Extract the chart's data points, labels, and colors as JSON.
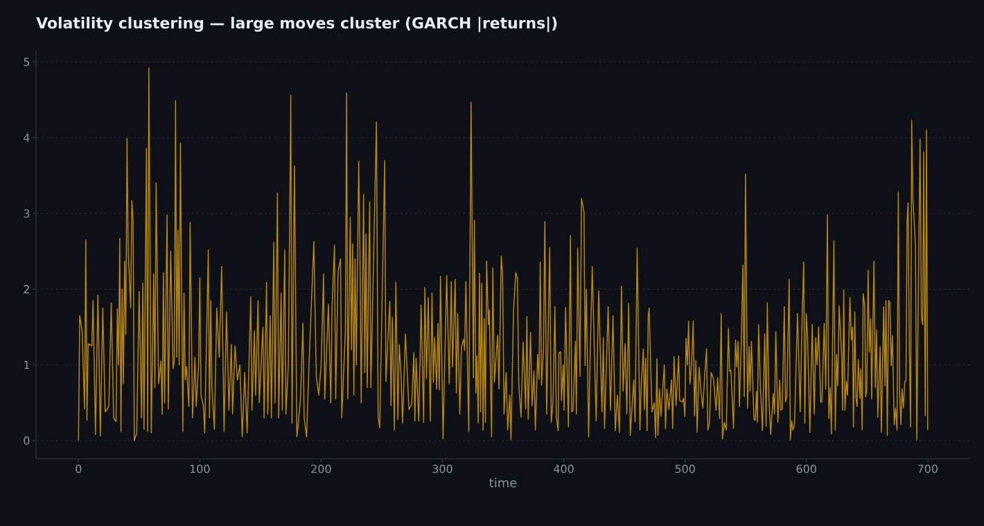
{
  "chart_data": {
    "type": "line",
    "title": "Volatility clustering — large moves cluster (GARCH |returns|)",
    "xlabel": "time",
    "color": "#b8860b",
    "grid": "y",
    "xlim": [
      -35,
      735
    ],
    "ylim": [
      -0.24,
      5.16
    ],
    "xticks": [
      0,
      100,
      200,
      300,
      400,
      500,
      600,
      700
    ],
    "yticks": [
      0,
      1,
      2,
      3,
      4,
      5
    ],
    "x": [
      0,
      1,
      3,
      5,
      6,
      7,
      8,
      11,
      12,
      14,
      16,
      18,
      20,
      22,
      25,
      27,
      29,
      31,
      32,
      33,
      34,
      35,
      36,
      37,
      38,
      39,
      40,
      41,
      43,
      44,
      45,
      46,
      48,
      50,
      52,
      53,
      54,
      56,
      57,
      58,
      60,
      62,
      63,
      64,
      66,
      68,
      69,
      70,
      71,
      73,
      74,
      76,
      78,
      79,
      80,
      81,
      82,
      83,
      84,
      86,
      87,
      88,
      89,
      91,
      92,
      94,
      96,
      97,
      99,
      100,
      101,
      103,
      104,
      107,
      108,
      109,
      110,
      112,
      114,
      116,
      118,
      120,
      122,
      124,
      126,
      127,
      129,
      131,
      133,
      135,
      137,
      139,
      142,
      143,
      145,
      146,
      148,
      149,
      152,
      153,
      155,
      156,
      158,
      159,
      161,
      162,
      164,
      165,
      167,
      168,
      170,
      171,
      173,
      175,
      176,
      178,
      180,
      181,
      183,
      185,
      186,
      188,
      190,
      194,
      196,
      198,
      200,
      202,
      203,
      206,
      208,
      209,
      211,
      212,
      214,
      216,
      217,
      220,
      221,
      222,
      224,
      225,
      226,
      227,
      228,
      229,
      231,
      232,
      233,
      235,
      236,
      237,
      238,
      240,
      241,
      245.6,
      247,
      248.3,
      252.4,
      253.4,
      256.6,
      257.6,
      258.7,
      260.4,
      261.6,
      263.3,
      264.4,
      265.9,
      267.1,
      269.5,
      272.4,
      274.7,
      276.4,
      277.3,
      278.3,
      280.5,
      282.4,
      284.5,
      285.5,
      286.8,
      288.3,
      290.0,
      291.4,
      292.5,
      293.6,
      295.2,
      296.3,
      297.4,
      298.4,
      300.5,
      303.5,
      305.6,
      307.3,
      308.3,
      310.5,
      311.5,
      312.6,
      314.3,
      315.7,
      317.4,
      318.3,
      319.3,
      321.7,
      323.6,
      325.5,
      326.3,
      327.6,
      328.4,
      329.5,
      330.5,
      331.4,
      332.4,
      333.5,
      334.5,
      335.4,
      336.4,
      337.9,
      338.6,
      340.5,
      341.5,
      342.8,
      345.5,
      346.6,
      348.5,
      349.6,
      350.8,
      352.5,
      353.8,
      355.5,
      356.5,
      358.6,
      360.5,
      361.8,
      362.9,
      364.8,
      366.5,
      368.6,
      369.6,
      370.7,
      372.6,
      373.9,
      375.5,
      376.6,
      378.5,
      379.6,
      380.6,
      381.7,
      383.3,
      384.4,
      385.9,
      388.4,
      389.7,
      391.2,
      392.7,
      393.9,
      395.4,
      396.0,
      397.5,
      398.1,
      399.6,
      400.3,
      401.5,
      403.9,
      405.5,
      406.6,
      407.7,
      409.6,
      410.4,
      411.5,
      413.4,
      414.6,
      416.7,
      417.6,
      418.6,
      420.5,
      421.8,
      423.5,
      426.7,
      428.8,
      431.5,
      432.6,
      433.6,
      436.6,
      438.5,
      440.6,
      442.5,
      444.2,
      445.9,
      447.6,
      448.9,
      450.6,
      452.0,
      453.5,
      454.8,
      457.7,
      458.8,
      460.5,
      462.8,
      463.9,
      465.6,
      466.4,
      467.5,
      468.7,
      469.6,
      470.4,
      472.7,
      474.6,
      475.7,
      476.8,
      477.6,
      478.9,
      480.1,
      482.9,
      483.9,
      485.0,
      486.7,
      488.8,
      489.8,
      490.9,
      492.6,
      494.7,
      495.5,
      497.7,
      498.7,
      499.8,
      500.8,
      501.9,
      502.9,
      504.0,
      505.3,
      506.7,
      507.8,
      508.9,
      509.9,
      511.6,
      513.1,
      514.6,
      516.3,
      517.7,
      518.8,
      520.1,
      521.5,
      523.4,
      525.6,
      526.8,
      528.5,
      529.8,
      530.8,
      532.3,
      534.0,
      535.7,
      536.7,
      537.8,
      539.9,
      541.6,
      542.7,
      543.7,
      544.8,
      546.3,
      547.7,
      548.8,
      549.8,
      551.5,
      552.8,
      553.6,
      554.7,
      556.8,
      557.9,
      558.9,
      559.6,
      560.6,
      562.1,
      563.8,
      565.7,
      566.8,
      567.8,
      569.1,
      570.6,
      572.7,
      573.7,
      574.8,
      576.5,
      578.0,
      579.0,
      580.1,
      581.8,
      582.8,
      583.9,
      585.8,
      586.8,
      587.9,
      588.9,
      590.2,
      592.7,
      594.9,
      596.3,
      597.8,
      598.7,
      599.9,
      601.0,
      602.9,
      604.8,
      606.5,
      607.7,
      608.8,
      610.1,
      611.8,
      612.8,
      614.7,
      616.0,
      617.3,
      618.5,
      619.6,
      620.6,
      622.7,
      623.8,
      624.9,
      625.9,
      627.0,
      629.1,
      629.9,
      630.8,
      631.8,
      632.9,
      633.9,
      635.9,
      637.1,
      638.0,
      638.8,
      639.9,
      640.9,
      641.8,
      642.8,
      644.1,
      644.9,
      646.0,
      646.8,
      648.1,
      648.9,
      649.8,
      650.9,
      651.9,
      653.0,
      653.8,
      655.7,
      656.8,
      657.8,
      658.9,
      660.8,
      661.8,
      663.7,
      664.8,
      665.6,
      666.7,
      667.8,
      668.8,
      669.9,
      670.9,
      672.4,
      673.5,
      674.7,
      675.8,
      676.8,
      677.9,
      678.9,
      680.0,
      681.1,
      682.1,
      683.0,
      683.8,
      684.9,
      685.9,
      686.8,
      687.8,
      689.9,
      691.0,
      693.7,
      694.8,
      695.9,
      696.7,
      698.0,
      699.0,
      700.0
    ],
    "values": [
      0,
      1.65,
      1.45,
      0.42,
      2.65,
      0.27,
      1.28,
      1.25,
      1.85,
      0.08,
      1.92,
      0.06,
      1.75,
      0.38,
      0.45,
      1.82,
      0.3,
      0.25,
      1.74,
      1.0,
      2.67,
      0.12,
      2.0,
      0.75,
      2.37,
      1.4,
      3.99,
      2.5,
      1.75,
      3.17,
      2.9,
      0.0,
      0.1,
      1.97,
      0.3,
      2.08,
      0.15,
      3.86,
      0.12,
      4.92,
      0.1,
      2.2,
      0.7,
      3.4,
      0.75,
      1.05,
      0.35,
      2.22,
      0.5,
      2.98,
      0.42,
      2.5,
      0.95,
      1.05,
      4.49,
      1.1,
      2.78,
      1.0,
      3.93,
      0.12,
      1.95,
      0.8,
      0.98,
      0.45,
      2.88,
      0.3,
      1.1,
      0.45,
      1.0,
      2.15,
      0.6,
      0.45,
      0.1,
      2.52,
      0.3,
      1.85,
      0.7,
      0.15,
      1.75,
      1.1,
      2.3,
      0.12,
      1.7,
      0.4,
      1.27,
      0.35,
      1.25,
      0.8,
      1.0,
      0.05,
      0.9,
      0.1,
      1.9,
      0.4,
      1.45,
      0.6,
      1.85,
      0.5,
      1.5,
      0.3,
      2.09,
      0.35,
      1.65,
      0.3,
      2.62,
      0.5,
      3.27,
      0.3,
      1.95,
      0.4,
      2.52,
      0.35,
      1.0,
      4.56,
      0.23,
      3.63,
      0.05,
      0.2,
      0.55,
      1.55,
      0.3,
      0.05,
      1.0,
      2.63,
      0.85,
      0.6,
      1.0,
      2.2,
      0.55,
      1.8,
      0.5,
      1.75,
      2.58,
      0.55,
      2.24,
      2.4,
      0.3,
      1.45,
      4.59,
      0.55,
      2.95,
      1.2,
      2.6,
      0.6,
      2.4,
      1.0,
      3.69,
      2.5,
      0.5,
      3.25,
      0.9,
      2.73,
      0.7,
      3.15,
      0.7,
      4.21,
      0.3,
      0.17,
      3.7,
      0.78,
      1.84,
      0.46,
      1.63,
      0.14,
      2.09,
      0.28,
      1.27,
      0.85,
      0.23,
      1.41,
      0.41,
      0.48,
      1.16,
      0.26,
      1.09,
      0.26,
      1.79,
      0.24,
      2.02,
      0.82,
      1.89,
      0.26,
      1.95,
      0.77,
      1.36,
      0.68,
      1.55,
      0.67,
      2.17,
      0.02,
      2.18,
      0.75,
      2.1,
      0.97,
      2.13,
      0.63,
      1.68,
      0.35,
      1.24,
      1.34,
      1.19,
      2.1,
      0.12,
      4.47,
      0.83,
      2.91,
      0.63,
      1.12,
      0.23,
      2.21,
      0.38,
      2.08,
      0.14,
      1.61,
      0.24,
      2.37,
      1.53,
      1.73,
      0.05,
      2.28,
      0.77,
      1.39,
      0.68,
      2.44,
      2.17,
      0.35,
      0.9,
      0.14,
      0.6,
      0.01,
      1.72,
      2.22,
      2.14,
      0.75,
      0.31,
      1.3,
      0.42,
      1.64,
      0.28,
      1.43,
      0.46,
      0.92,
      0.14,
      1.14,
      0.81,
      2.36,
      0.73,
      1.21,
      2.89,
      0.35,
      2.55,
      0.24,
      0.53,
      1.77,
      0.31,
      0.13,
      1.16,
      1.17,
      0.53,
      1.0,
      0.4,
      1.76,
      0.18,
      2.71,
      0.38,
      0.4,
      1.31,
      0.35,
      2.54,
      0.85,
      3.2,
      3.02,
      0.99,
      2.0,
      0.05,
      1.16,
      2.3,
      0.26,
      1.98,
      0.38,
      1.36,
      0.16,
      1.77,
      0.4,
      1.65,
      0.13,
      0.6,
      0.11,
      2.04,
      0.65,
      1.28,
      0.35,
      1.81,
      0.07,
      0.8,
      0.25,
      2.54,
      0.14,
      0.75,
      1.21,
      0.41,
      1.09,
      0.13,
      1.63,
      1.75,
      0.38,
      0.5,
      0.04,
      1.08,
      0.07,
      0.68,
      0.32,
      1.0,
      0.16,
      0.68,
      0.41,
      0.8,
      0.16,
      1.11,
      0.46,
      1.12,
      0.53,
      0.51,
      0.56,
      0.32,
      1.35,
      1.0,
      1.58,
      0.75,
      0.99,
      1.58,
      0.33,
      1.06,
      0.11,
      0.97,
      0.65,
      0.43,
      0.89,
      1.21,
      0.14,
      0.23,
      0.9,
      0.82,
      0.4,
      0.83,
      0.29,
      1.68,
      0.02,
      0.24,
      0.14,
      1.48,
      0.92,
      0.93,
      0.16,
      1.33,
      0.97,
      1.31,
      0.45,
      1.28,
      2.32,
      0.58,
      3.52,
      0.43,
      1.24,
      0.65,
      1.31,
      0.28,
      0.27,
      0.65,
      0.24,
      1.53,
      0.72,
      0.13,
      1.41,
      0.19,
      1.82,
      0.56,
      0.08,
      0.62,
      0.35,
      1.44,
      0.24,
      0.8,
      0.4,
      0.42,
      1.77,
      0.51,
      0.58,
      2.13,
      0.01,
      0.26,
      0.14,
      0.21,
      1.68,
      0.38,
      1.5,
      2.36,
      0.23,
      1.68,
      1.36,
      0.11,
      1.53,
      0.35,
      1.36,
      1.0,
      1.5,
      0.51,
      0.51,
      1.55,
      0.68,
      2.98,
      0.29,
      0.7,
      0.09,
      2.64,
      0.14,
      1.14,
      0.72,
      1.78,
      1.11,
      0.4,
      1.99,
      0.4,
      0.78,
      0.6,
      1.89,
      1.33,
      1.5,
      0.18,
      1.7,
      0.56,
      0.45,
      1.07,
      0.56,
      0.95,
      0.14,
      1.94,
      1.78,
      0.58,
      0.66,
      2.25,
      1.17,
      1.61,
      0.55,
      2.37,
      0.7,
      1.46,
      0.31,
      1.24,
      0.11,
      1.77,
      0.72,
      1.85,
      0.07,
      1.85,
      1.83,
      0.99,
      1.39,
      0.21,
      0.43,
      0.14,
      3.28,
      0.65,
      0.21,
      0.68,
      0.43,
      0.78,
      0.79,
      2.9,
      3.14,
      1.19,
      0.18,
      4.23,
      3.19,
      2.58,
      0.01,
      3.98,
      1.63,
      1.53,
      3.81,
      0.33,
      4.1,
      0.14
    ]
  }
}
